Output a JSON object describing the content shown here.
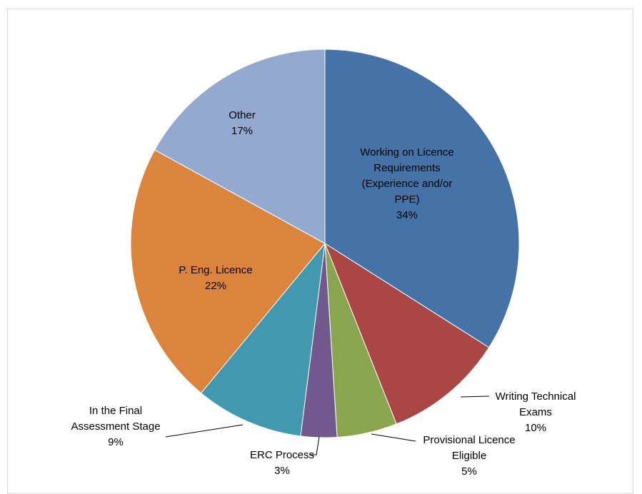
{
  "chart_data": {
    "type": "pie",
    "title": "",
    "start": "12 o'clock, clockwise",
    "colors": [
      "#4572A7",
      "#AA4643",
      "#89A54E",
      "#71588F",
      "#4198AF",
      "#DB843D",
      "#93A9CF"
    ],
    "slices": [
      {
        "label": [
          "Working on Licence",
          "Requirements",
          "(Experience and/or",
          "PPE)"
        ],
        "value": 34,
        "pct_text": "34%"
      },
      {
        "label": [
          "Writing Technical",
          "Exams"
        ],
        "value": 10,
        "pct_text": "10%"
      },
      {
        "label": [
          "Provisional Licence",
          "Eligible"
        ],
        "value": 5,
        "pct_text": "5%"
      },
      {
        "label": [
          "ERC Process"
        ],
        "value": 3,
        "pct_text": "3%"
      },
      {
        "label": [
          "In the Final",
          "Assessment Stage"
        ],
        "value": 9,
        "pct_text": "9%"
      },
      {
        "label": [
          "P. Eng. Licence"
        ],
        "value": 22,
        "pct_text": "22%"
      },
      {
        "label": [
          "Other"
        ],
        "value": 17,
        "pct_text": "17%"
      }
    ]
  }
}
